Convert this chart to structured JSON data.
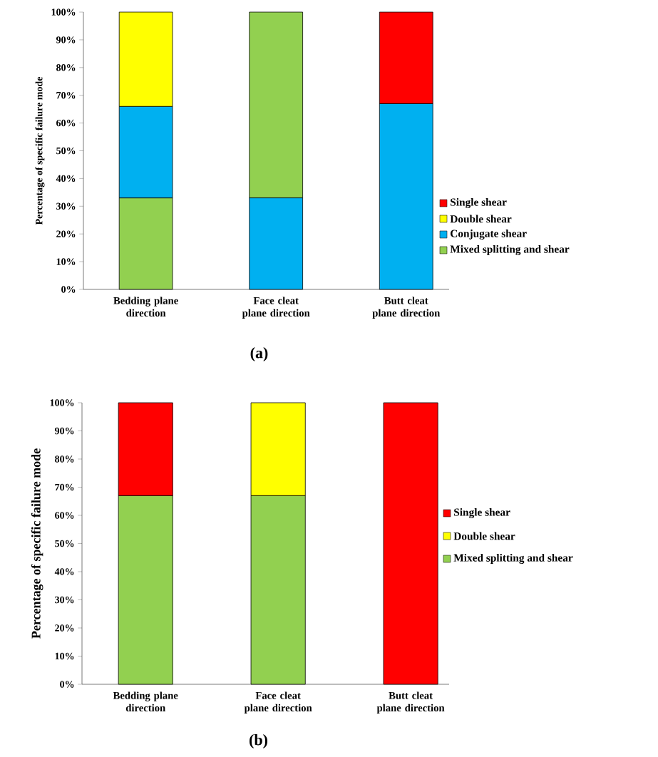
{
  "chart_data": [
    {
      "type": "bar",
      "annotations": [
        "(a)"
      ],
      "ylabel": "Percentage of specific failure mode",
      "categories": [
        "Bedding plane direction",
        "Face cleat plane direction",
        "Butt cleat plane direction"
      ],
      "series": [
        {
          "name": "Mixed splitting and shear",
          "color": "#92d050",
          "values": [
            33,
            67,
            null
          ],
          "base": [
            0,
            33,
            null
          ]
        },
        {
          "name": "Conjugate shear",
          "color": "#00b0f0",
          "values": [
            33,
            33,
            67
          ],
          "base": [
            33,
            0,
            0
          ]
        },
        {
          "name": "Double shear",
          "color": "#ffff00",
          "values": [
            34,
            null,
            null
          ],
          "base": [
            66,
            null,
            null
          ]
        },
        {
          "name": "Single shear",
          "color": "#ff0000",
          "values": [
            null,
            null,
            33
          ],
          "base": [
            null,
            null,
            67
          ]
        }
      ],
      "ylim": [
        0,
        100
      ],
      "yticks": [
        {
          "value": 0,
          "label": "0%"
        },
        {
          "value": 10,
          "label": "10%"
        },
        {
          "value": 20,
          "label": "20%"
        },
        {
          "value": 30,
          "label": "30%"
        },
        {
          "value": 40,
          "label": "40%"
        },
        {
          "value": 50,
          "label": "50%"
        },
        {
          "value": 60,
          "label": "60%"
        },
        {
          "value": 70,
          "label": "70%"
        },
        {
          "value": 80,
          "label": "80%"
        },
        {
          "value": 90,
          "label": "90%"
        },
        {
          "value": 100,
          "label": "100%"
        }
      ],
      "legend": "right"
    },
    {
      "type": "bar",
      "annotations": [
        "(b)"
      ],
      "ylabel": "Percentage of specific failure mode",
      "stacked": true,
      "categories": [
        "Bedding plane direction",
        "Face cleat plane direction",
        "Butt cleat plane direction"
      ],
      "series": [
        {
          "name": "Mixed splitting and shear",
          "color": "#92d050",
          "values": [
            67,
            67,
            null
          ]
        },
        {
          "name": "Double shear",
          "color": "#ffff00",
          "values": [
            null,
            33,
            null
          ]
        },
        {
          "name": "Single shear",
          "color": "#ff0000",
          "values": [
            33,
            null,
            100
          ]
        }
      ],
      "ylim": [
        0,
        100
      ],
      "yticks": [
        {
          "value": 0,
          "label": "0%"
        },
        {
          "value": 10,
          "label": "10%"
        },
        {
          "value": 20,
          "label": "20%"
        },
        {
          "value": 30,
          "label": "30%"
        },
        {
          "value": 40,
          "label": "40%"
        },
        {
          "value": 50,
          "label": "50%"
        },
        {
          "value": 60,
          "label": "60%"
        },
        {
          "value": 70,
          "label": "70%"
        },
        {
          "value": 80,
          "label": "80%"
        },
        {
          "value": 90,
          "label": "90%"
        },
        {
          "value": 100,
          "label": "100%"
        }
      ],
      "legend": "right"
    }
  ]
}
